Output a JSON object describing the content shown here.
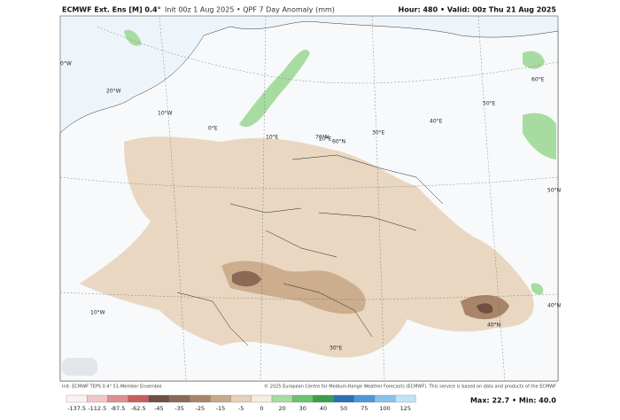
{
  "header": {
    "title": "ECMWF Ext. Ens [M] 0.4°",
    "subtitle": "Init 00z 1 Aug 2025 • QPF 7 Day Anomaly (mm)",
    "valid": "Hour: 480 • Valid: 00z Thu 21 Aug 2025"
  },
  "map": {
    "labels": [
      "0°W",
      "20°W",
      "10°W",
      "0°E",
      "10°E",
      "20°E",
      "30°E",
      "40°E",
      "50°E",
      "60°E",
      "70°N",
      "60°N",
      "50°N",
      "40°N",
      "40°N",
      "10°W",
      "30°E"
    ],
    "credit_left": "Init: ECMWF TEPS 0.4° 51-Member Ensemble",
    "credit_right": "© 2025 European Centre for Medium-Range Weather Forecasts (ECMWF). This service is based on data and products of the ECMWF"
  },
  "colorbar": {
    "items": [
      {
        "label": "-137.5",
        "color": "#fdf0f2"
      },
      {
        "label": "-112.5",
        "color": "#f2c6c8"
      },
      {
        "label": "-87.5",
        "color": "#e08f8f"
      },
      {
        "label": "-62.5",
        "color": "#c65f5a"
      },
      {
        "label": "-45",
        "color": "#6e4f42"
      },
      {
        "label": "-35",
        "color": "#8a6a55"
      },
      {
        "label": "-25",
        "color": "#a88468"
      },
      {
        "label": "-15",
        "color": "#c9a888"
      },
      {
        "label": "-5",
        "color": "#e6d1b6"
      },
      {
        "label": "0",
        "color": "#f3ecdf"
      },
      {
        "label": "20",
        "color": "#a7dca0"
      },
      {
        "label": "30",
        "color": "#6cc36c"
      },
      {
        "label": "40",
        "color": "#3a9f4a"
      },
      {
        "label": "50",
        "color": "#2a6fb8"
      },
      {
        "label": "75",
        "color": "#4d98d8"
      },
      {
        "label": "100",
        "color": "#86c2ec"
      },
      {
        "label": "125",
        "color": "#bfe3f7"
      }
    ],
    "stats": "Max: 22.7 • Min: 40.0"
  }
}
